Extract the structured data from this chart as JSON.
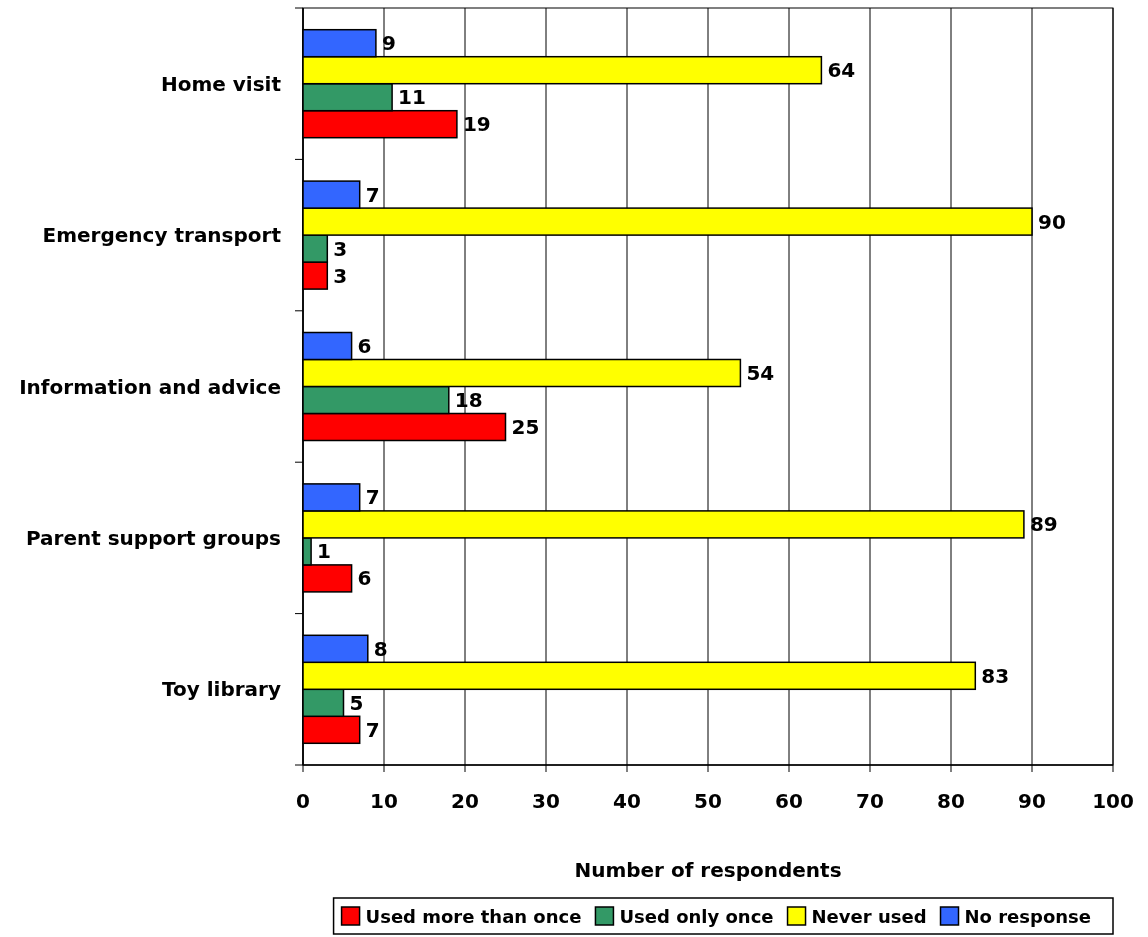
{
  "chart_data": {
    "type": "bar",
    "orientation": "horizontal",
    "xlabel": "Number of respondents",
    "categories": [
      "Home visit",
      "Emergency transport",
      "Information and advice",
      "Parent support groups",
      "Toy library"
    ],
    "series": [
      {
        "name": "Used more than once",
        "color": "#ff0000",
        "values": [
          19,
          3,
          25,
          6,
          7
        ]
      },
      {
        "name": "Used only once",
        "color": "#339966",
        "values": [
          11,
          3,
          18,
          1,
          5
        ]
      },
      {
        "name": "Never used",
        "color": "#ffff00",
        "values": [
          64,
          90,
          54,
          89,
          83
        ]
      },
      {
        "name": "No response",
        "color": "#3366ff",
        "values": [
          9,
          7,
          6,
          7,
          8
        ]
      }
    ],
    "xlim": [
      0,
      100
    ],
    "xticks": [
      0,
      10,
      20,
      30,
      40,
      50,
      60,
      70,
      80,
      90,
      100
    ],
    "grid": "x",
    "legend": "bottom",
    "data_labels": true
  }
}
